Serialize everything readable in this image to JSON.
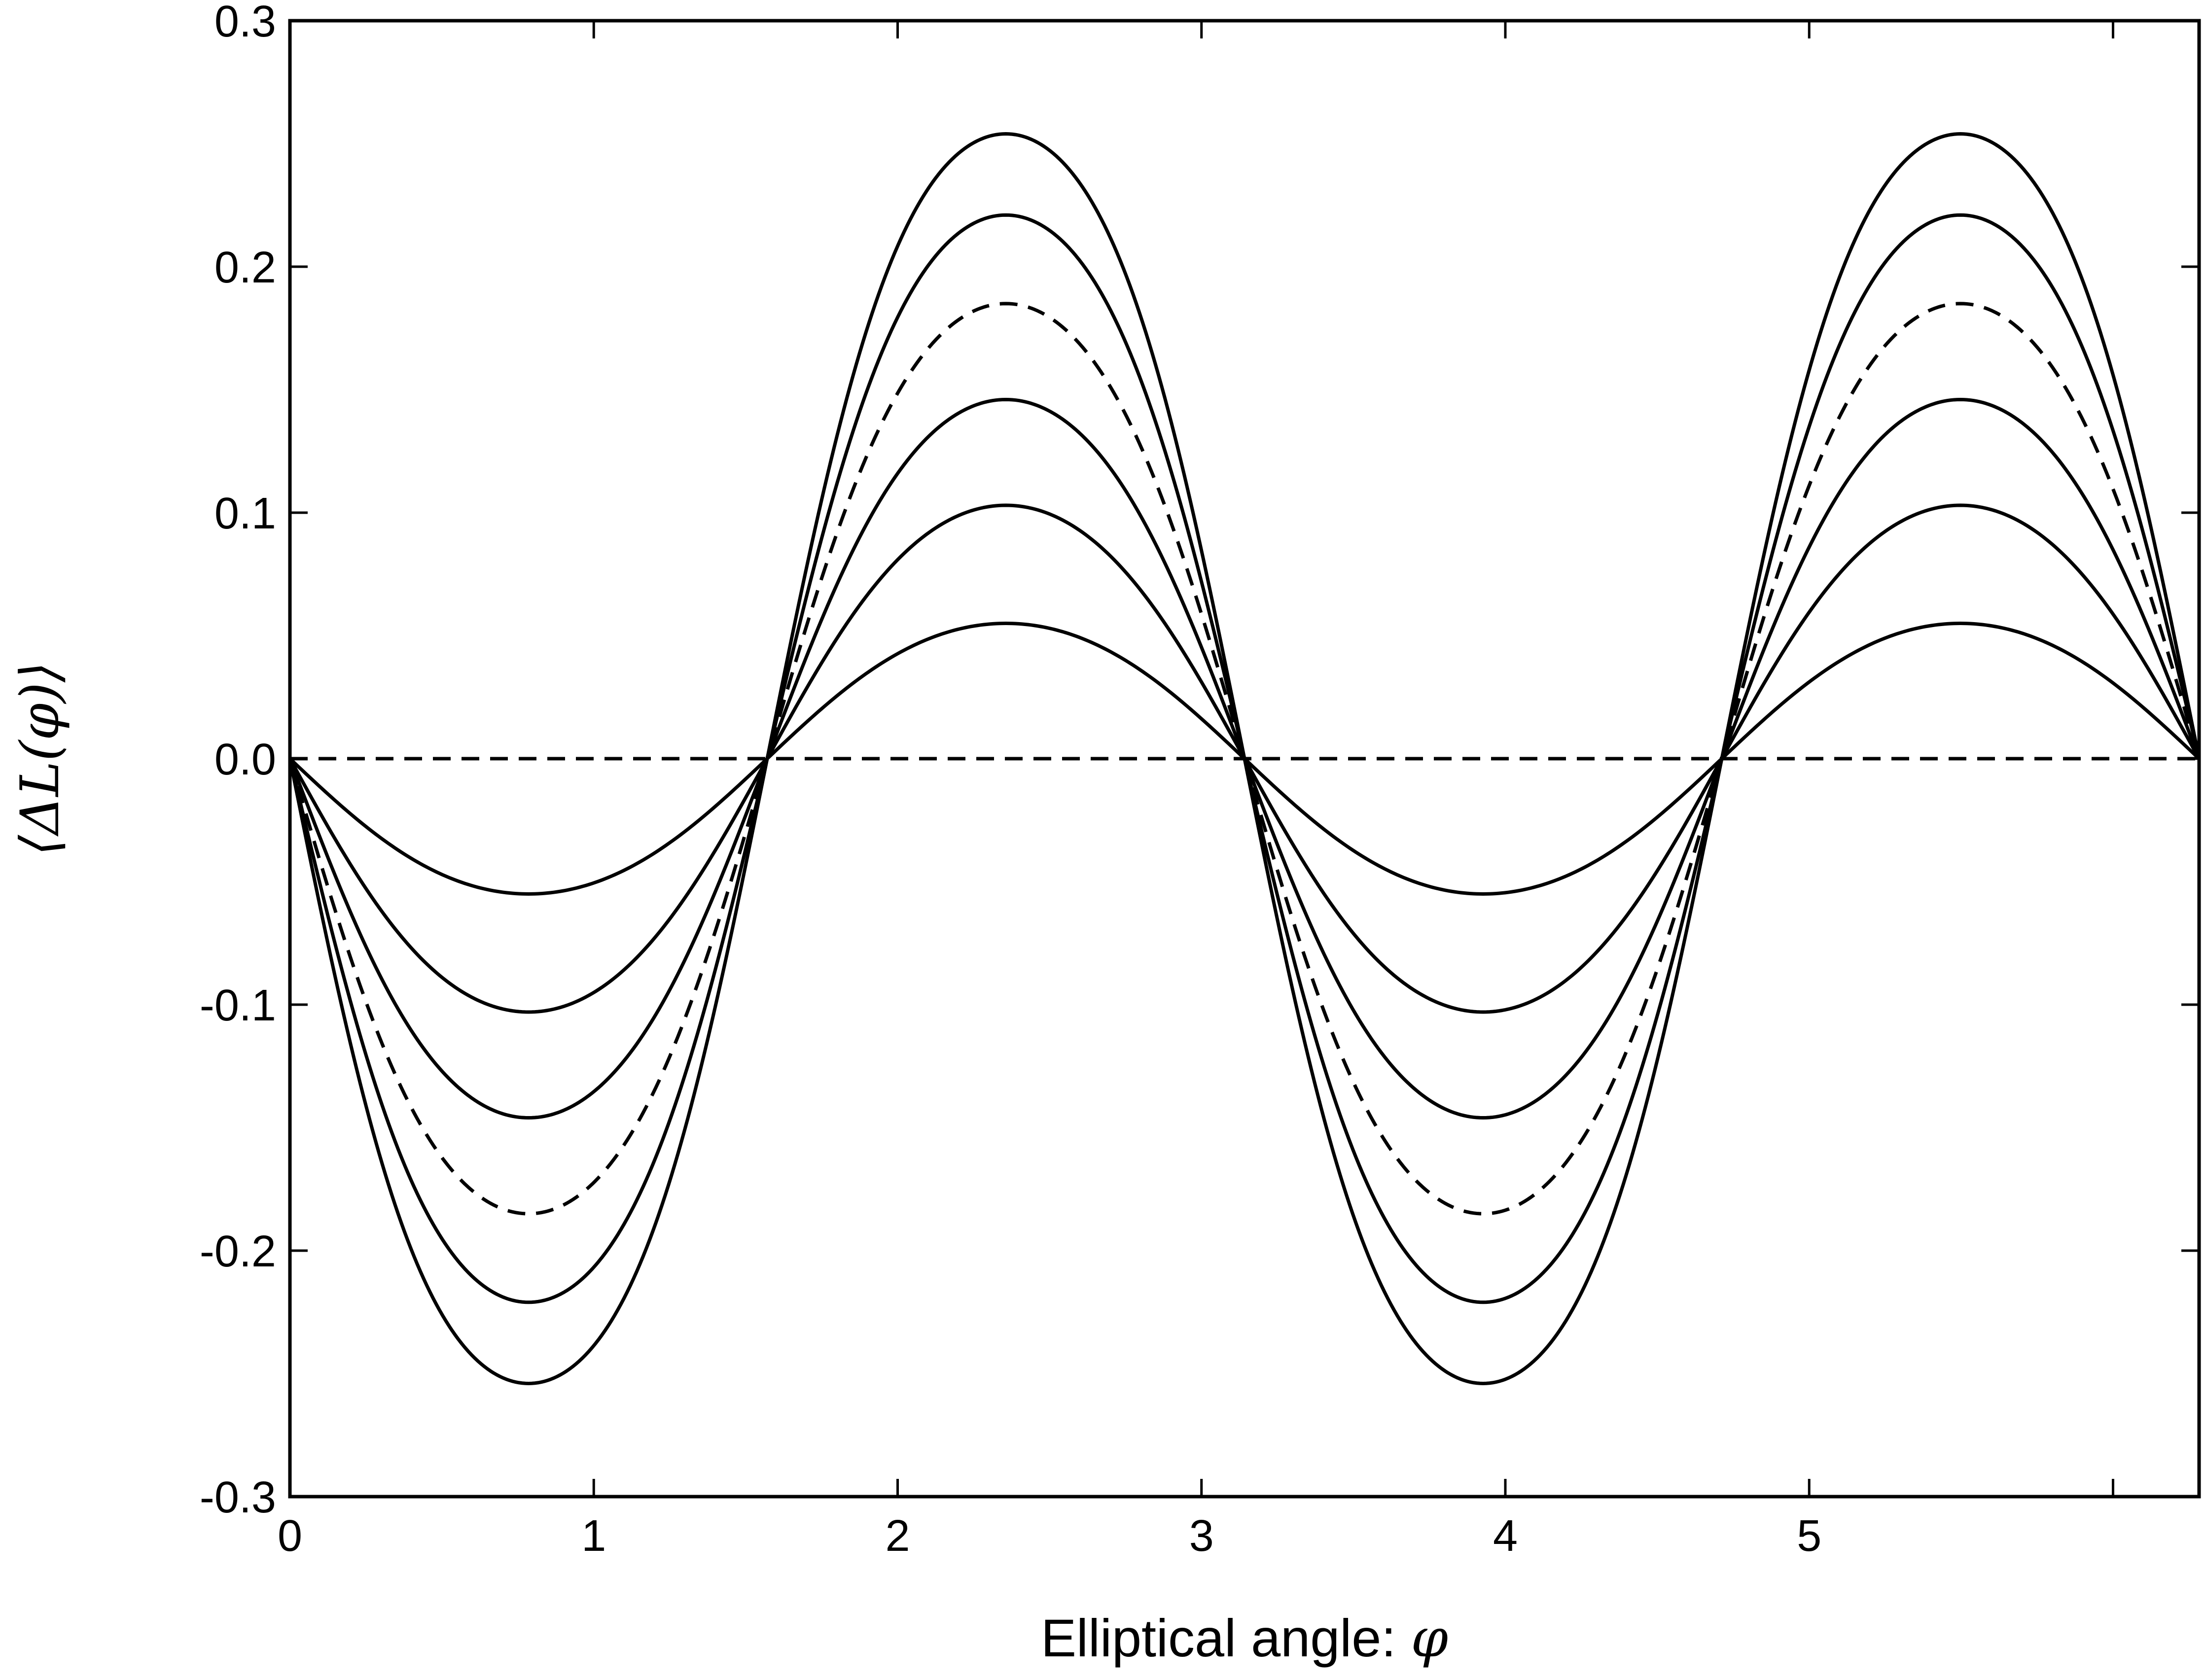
{
  "chart_data": {
    "type": "line",
    "title": "",
    "xlabel": "Elliptical angle: ",
    "xlabel_symbol": "φ",
    "ylabel": "⟨ΔL(φ)⟩",
    "xlim": [
      0,
      6.2832
    ],
    "ylim": [
      -0.3,
      0.3
    ],
    "xticks": [
      0,
      1,
      2,
      3,
      4,
      5,
      6
    ],
    "xtick_labels": [
      "0",
      "1",
      "2",
      "3",
      "4",
      "5",
      ""
    ],
    "yticks": [
      -0.3,
      -0.2,
      -0.1,
      0.0,
      0.1,
      0.2,
      0.3
    ],
    "ytick_labels": [
      "-0.3",
      "-0.2",
      "-0.1",
      "0.0",
      "0.1",
      "0.2",
      "0.3"
    ],
    "grid": false,
    "legend": "none",
    "line_color": "#000000",
    "series": [
      {
        "amplitude": 0.055,
        "skew": 0.03,
        "style": "solid"
      },
      {
        "amplitude": 0.103,
        "skew": 0.045,
        "style": "solid"
      },
      {
        "amplitude": 0.146,
        "skew": 0.06,
        "style": "solid"
      },
      {
        "amplitude": 0.185,
        "skew": 0.075,
        "style": "dashed"
      },
      {
        "amplitude": 0.221,
        "skew": 0.09,
        "style": "solid"
      },
      {
        "amplitude": 0.254,
        "skew": 0.105,
        "style": "solid"
      },
      {
        "amplitude": 0.0,
        "skew": 0.0,
        "style": "dashed"
      }
    ],
    "curve_formula": "y = -amplitude * sin(2*phi + skew*sin(4*phi)) / max"
  }
}
